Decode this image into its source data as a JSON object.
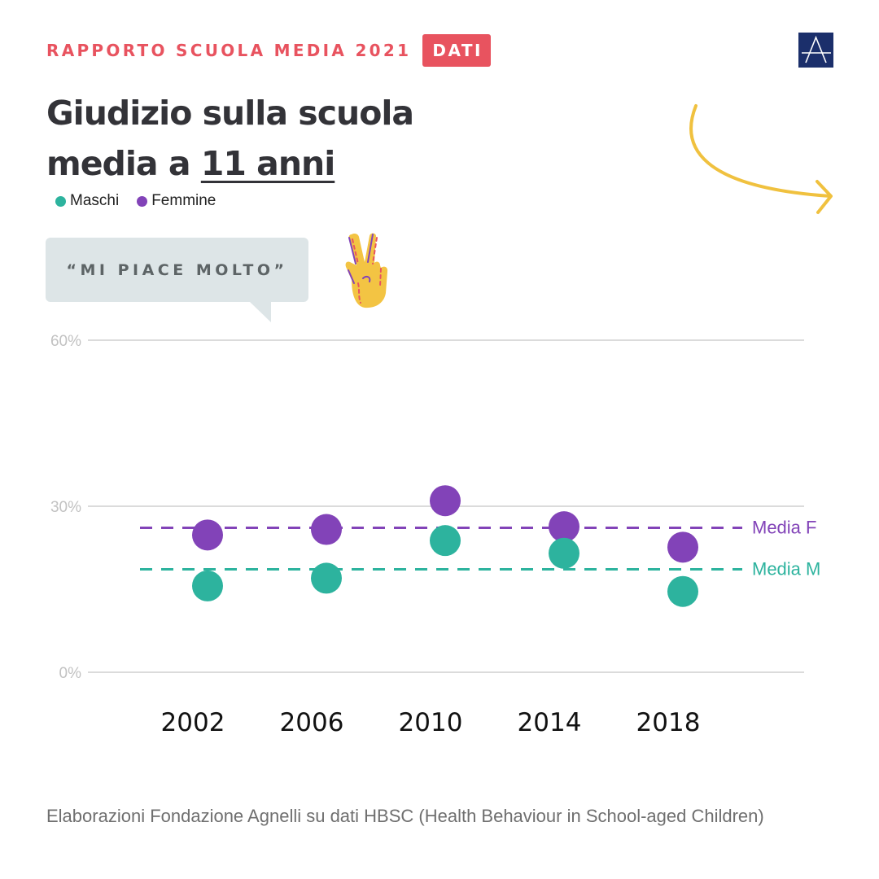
{
  "header": {
    "kicker": "RAPPORTO SCUOLA MEDIA 2021",
    "tag": "DATI"
  },
  "logo": {
    "icon": "agnelli-logo-icon",
    "letter": "A",
    "color": "#1b2f6b"
  },
  "title": {
    "line1": "Giudizio sulla scuola",
    "line2_prefix": "media a ",
    "line2_underlined": "11 anni"
  },
  "legend": [
    {
      "label": "Maschi",
      "color": "#2db39e"
    },
    {
      "label": "Femmine",
      "color": "#8243b8"
    }
  ],
  "quote": "“MI PIACE MOLTO”",
  "decorations": {
    "arrow": "curved-arrow-icon",
    "hand": "victory-hand-icon",
    "arrow_color": "#f0c13f"
  },
  "chart_data": {
    "type": "scatter",
    "categories": [
      "2002",
      "2006",
      "2010",
      "2014",
      "2018"
    ],
    "series": [
      {
        "name": "Femmine",
        "color": "#8243b8",
        "values": [
          24.8,
          25.8,
          31.0,
          26.3,
          22.6
        ]
      },
      {
        "name": "Maschi",
        "color": "#2db39e",
        "values": [
          15.6,
          17.0,
          23.8,
          21.5,
          14.6
        ]
      }
    ],
    "reference_lines": [
      {
        "label": "Media F",
        "value": 26.1,
        "color": "#8243b8"
      },
      {
        "label": "Media M",
        "value": 18.6,
        "color": "#2db39e"
      }
    ],
    "yticks": [
      "60%",
      "30%",
      "0%"
    ],
    "ytick_values": [
      60,
      30,
      0
    ],
    "ylim": [
      0,
      60
    ],
    "grid": true,
    "title": "",
    "xlabel": "",
    "ylabel": ""
  },
  "source": "Elaborazioni Fondazione Agnelli su dati HBSC (Health Behaviour in School-aged Children)"
}
